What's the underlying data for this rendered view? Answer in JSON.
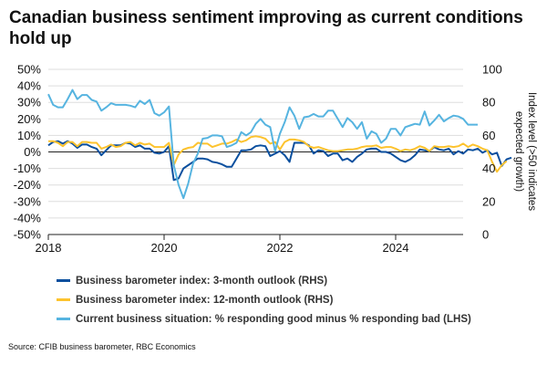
{
  "title": "Canadian business sentiment improving as current conditions hold up",
  "source": "Source: CFIB business barometer, RBC Economics",
  "chart_data": {
    "type": "line",
    "title": "Canadian business sentiment improving as current conditions hold up",
    "xlabel": "",
    "ylabel_left": "",
    "ylabel_right": "Index level (>50 indicates expected growth)",
    "x_start": "2018-01",
    "x_frequency": "monthly",
    "xlim": [
      2018.0,
      2025.5
    ],
    "x_ticks": [
      2018,
      2020,
      2022,
      2024
    ],
    "x_tick_labels": [
      "2018",
      "2020",
      "2022",
      "2024"
    ],
    "ylim_left": [
      -50,
      50
    ],
    "y_ticks_left": [
      -50,
      -40,
      -30,
      -20,
      -10,
      0,
      10,
      20,
      30,
      40,
      50
    ],
    "y_tick_labels_left": [
      "-50%",
      "-40%",
      "-30%",
      "-20%",
      "-10%",
      "0%",
      "10%",
      "20%",
      "30%",
      "40%",
      "50%"
    ],
    "ylim_right": [
      0,
      100
    ],
    "y_ticks_right": [
      0,
      20,
      40,
      60,
      80,
      100
    ],
    "y_tick_labels_right": [
      "0",
      "20",
      "40",
      "60",
      "80",
      "100"
    ],
    "grid": true,
    "zero_line": true,
    "legend_position": "bottom",
    "series": [
      {
        "name": "Business barometer index: 3-month outlook (RHS)",
        "axis": "right",
        "color": "#0a4f9e",
        "values": [
          54,
          56,
          56.5,
          55,
          56.5,
          55,
          52.5,
          54.5,
          54.5,
          53,
          52,
          48,
          51,
          54,
          54,
          54,
          55.5,
          55,
          53,
          54,
          52,
          52,
          49.5,
          49,
          50,
          53.5,
          33,
          34,
          40,
          42,
          44,
          46,
          46,
          45.5,
          44,
          43.5,
          42.5,
          41,
          41,
          46,
          51,
          51,
          51.5,
          53.5,
          54,
          53.5,
          47.5,
          49,
          50.5,
          48,
          44,
          55.5,
          55.5,
          55.5,
          54,
          49,
          51,
          50.5,
          47.5,
          49,
          49,
          45,
          46,
          44,
          47,
          49,
          51.5,
          52,
          52,
          50,
          50,
          49,
          47,
          45,
          44,
          45.5,
          48,
          51.5,
          51,
          50.5,
          53,
          51.5,
          51,
          52,
          48.5,
          50.5,
          49,
          51.5,
          51,
          52,
          49.5,
          51,
          48.5,
          49.5,
          41.5,
          45.5,
          46.5
        ]
      },
      {
        "name": "Business barometer index: 12-month outlook (RHS)",
        "axis": "right",
        "color": "#fdc32e",
        "values": [
          56.5,
          56.5,
          55.5,
          53.5,
          56,
          56,
          53.5,
          56,
          56,
          55.5,
          55.5,
          52,
          53,
          54.5,
          53,
          53.5,
          55.5,
          56,
          54,
          55.5,
          54.5,
          55,
          53,
          53,
          53,
          55.5,
          42,
          48.5,
          51.5,
          52.5,
          53,
          55.5,
          55,
          55,
          53,
          54,
          55,
          55,
          56,
          57.5,
          56,
          57,
          59,
          59.5,
          59,
          58,
          55,
          56,
          51.5,
          56,
          57.5,
          57.5,
          57,
          56,
          53.5,
          52.5,
          53,
          52,
          51,
          50.5,
          50.5,
          51,
          51.5,
          51.5,
          52,
          53,
          53.5,
          53.5,
          54,
          52.5,
          53,
          53,
          52,
          50.5,
          51.5,
          51,
          52,
          53.5,
          52.5,
          50.5,
          53.5,
          53,
          53,
          53.5,
          53,
          53.5,
          55,
          53,
          54.5,
          53.5,
          52,
          51,
          44,
          38,
          42,
          44.5
        ]
      },
      {
        "name": "Current business situation: % responding good minus % responding bad (LHS)",
        "axis": "left",
        "color": "#56b4e0",
        "values": [
          35,
          28.5,
          27,
          27,
          32,
          37.5,
          32,
          34.5,
          34.5,
          31.5,
          30.5,
          25,
          27,
          29.5,
          28.5,
          28.5,
          28.5,
          28,
          27,
          31,
          29,
          31.5,
          23.5,
          22,
          24,
          27.5,
          -8,
          -20,
          -28,
          -19,
          -7,
          -1,
          8,
          8.5,
          10,
          10,
          9.5,
          3,
          4,
          5.5,
          12,
          10,
          12,
          17,
          20,
          16.5,
          15,
          0.5,
          11,
          18,
          27,
          22,
          14,
          21,
          21.5,
          23,
          21.5,
          21.5,
          25,
          25,
          20,
          15,
          20.5,
          18,
          14,
          18,
          8,
          12.5,
          11,
          5.5,
          8,
          14,
          14,
          10,
          15,
          16,
          17,
          16.5,
          24.5,
          16,
          19,
          22.5,
          18.5,
          20.5,
          22,
          21.5,
          20,
          16.5,
          16.5,
          16.5
        ]
      }
    ]
  }
}
